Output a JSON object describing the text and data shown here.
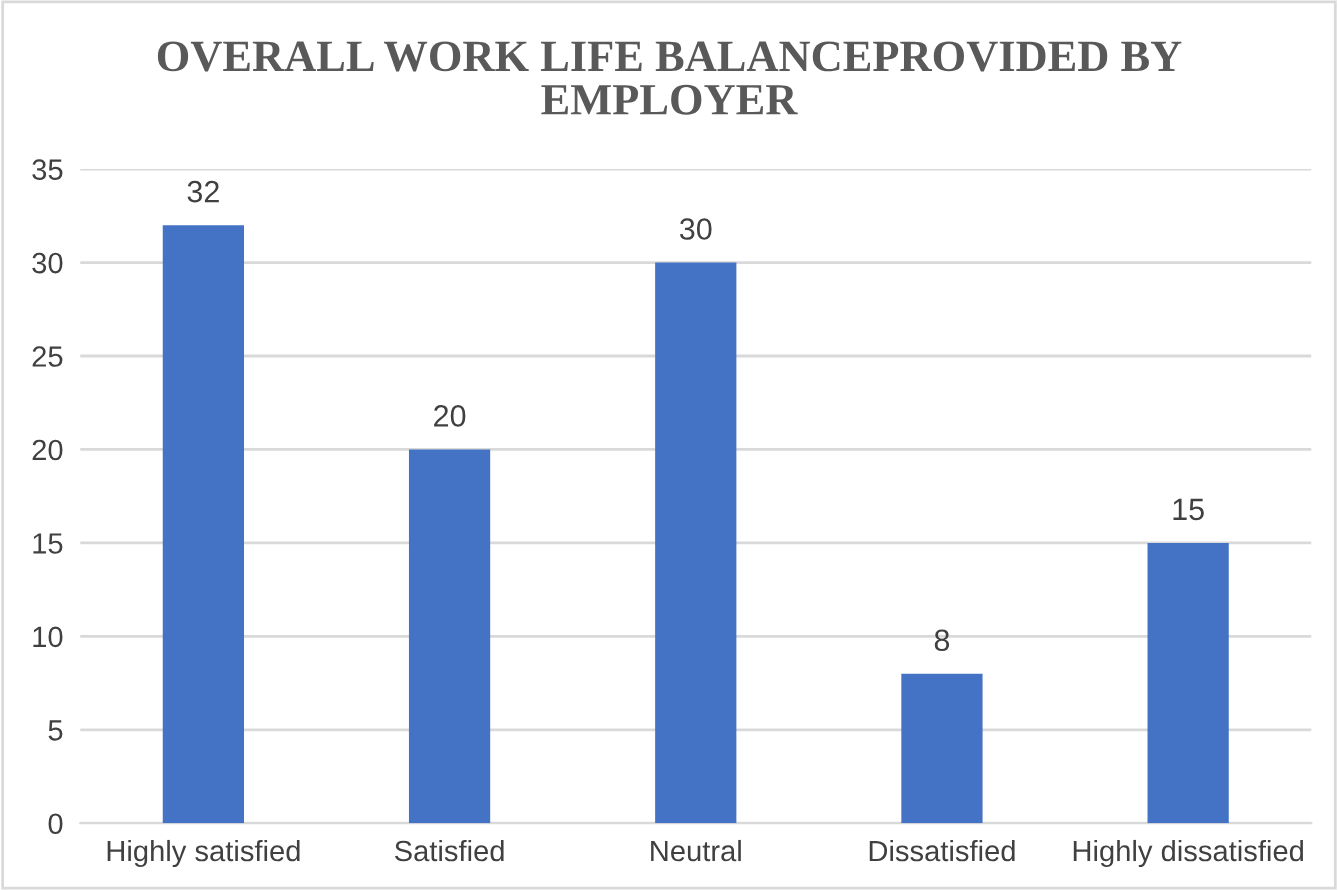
{
  "chart_data": {
    "type": "bar",
    "title": "OVERALL WORK LIFE BALANCEPROVIDED BY\nEMPLOYER",
    "categories": [
      "Highly satisfied",
      "Satisfied",
      "Neutral",
      "Dissatisfied",
      "Highly dissatisfied"
    ],
    "values": [
      32,
      20,
      30,
      8,
      15
    ],
    "color": "#4472c4",
    "ylim": [
      0,
      35
    ],
    "yticks": [
      0,
      5,
      10,
      15,
      20,
      25,
      30,
      35
    ],
    "grid": "y",
    "data_labels": true,
    "legend": false
  }
}
